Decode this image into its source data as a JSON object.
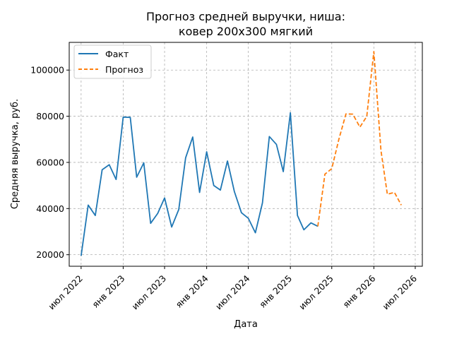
{
  "chart_data": {
    "type": "line",
    "title_lines": [
      "Прогноз средней выручки, ниша:",
      "ковер 200х300 мягкий"
    ],
    "xlabel": "Дата",
    "ylabel": "Средняя выручка, руб.",
    "x_tick_labels": [
      "июл 2022",
      "янв 2023",
      "июл 2023",
      "янв 2024",
      "июл 2024",
      "янв 2025",
      "июл 2025",
      "янв 2026",
      "июл 2026"
    ],
    "x_tick_dates": [
      "2022-07-01",
      "2023-01-01",
      "2023-07-01",
      "2024-01-01",
      "2024-07-01",
      "2025-01-01",
      "2025-07-01",
      "2026-01-01",
      "2026-07-01"
    ],
    "y_ticks": [
      20000,
      40000,
      60000,
      80000,
      100000
    ],
    "y_tick_labels": [
      "20000",
      "40000",
      "60000",
      "80000",
      "100000"
    ],
    "xlim": [
      "2022-05-10",
      "2026-08-01"
    ],
    "ylim": [
      15000,
      112000
    ],
    "grid": true,
    "legend_position": "top-left",
    "series": [
      {
        "name": "Факт",
        "color": "#1f77b4",
        "style": "solid",
        "x": [
          "2022-07-01",
          "2022-08-01",
          "2022-09-01",
          "2022-10-01",
          "2022-11-01",
          "2022-12-01",
          "2023-01-01",
          "2023-02-01",
          "2023-03-01",
          "2023-04-01",
          "2023-05-01",
          "2023-06-01",
          "2023-07-01",
          "2023-08-01",
          "2023-09-01",
          "2023-10-01",
          "2023-11-01",
          "2023-12-01",
          "2024-01-01",
          "2024-02-01",
          "2024-03-01",
          "2024-04-01",
          "2024-05-01",
          "2024-06-01",
          "2024-07-01",
          "2024-08-01",
          "2024-09-01",
          "2024-10-01",
          "2024-11-01",
          "2024-12-01",
          "2025-01-01",
          "2025-02-01",
          "2025-03-01",
          "2025-04-01",
          "2025-05-01"
        ],
        "y": [
          19500,
          41500,
          37000,
          56800,
          59000,
          52600,
          79600,
          79500,
          53600,
          59800,
          33600,
          37900,
          44600,
          32000,
          39600,
          62000,
          71000,
          47000,
          64600,
          50000,
          48000,
          60600,
          47400,
          38200,
          35800,
          29500,
          42500,
          71200,
          67800,
          56000,
          81500,
          37000,
          30800,
          33800,
          32300
        ]
      },
      {
        "name": "Прогноз",
        "color": "#ff7f0e",
        "style": "dashed",
        "x": [
          "2025-05-01",
          "2025-06-01",
          "2025-07-01",
          "2025-08-01",
          "2025-09-01",
          "2025-10-01",
          "2025-11-01",
          "2025-12-01",
          "2026-01-01",
          "2026-02-01",
          "2026-03-01",
          "2026-04-01",
          "2026-05-01"
        ],
        "y": [
          32300,
          54900,
          57300,
          70000,
          81000,
          80900,
          75300,
          79900,
          108000,
          65200,
          46200,
          47000,
          41500
        ]
      }
    ]
  }
}
